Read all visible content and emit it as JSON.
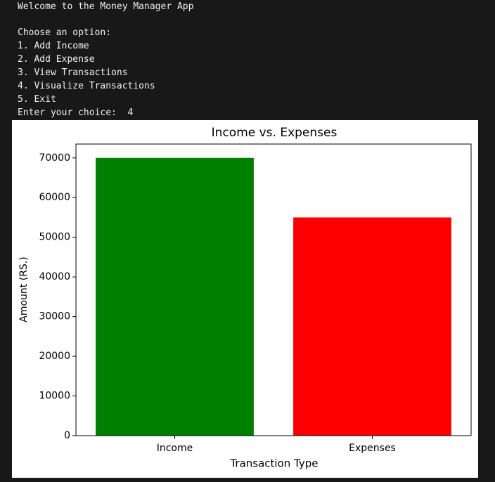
{
  "terminal": {
    "lines": [
      "Welcome to the Money Manager App",
      "Choose an option:",
      "1. Add Income",
      "2. Add Expense",
      "3. View Transactions",
      "4. Visualize Transactions",
      "5. Exit",
      "Enter your choice:  4"
    ]
  },
  "chart_data": {
    "type": "bar",
    "title": "Income vs. Expenses",
    "x_label": "Transaction Type",
    "y_label": "Amount (RS.)",
    "categories": [
      "Income",
      "Expenses"
    ],
    "values": [
      70000,
      55000
    ],
    "colors": [
      "#008000",
      "#ff0000"
    ],
    "ylim": [
      0,
      73500
    ],
    "yticks": [
      0,
      10000,
      20000,
      30000,
      40000,
      50000,
      60000,
      70000
    ],
    "grid": false
  }
}
